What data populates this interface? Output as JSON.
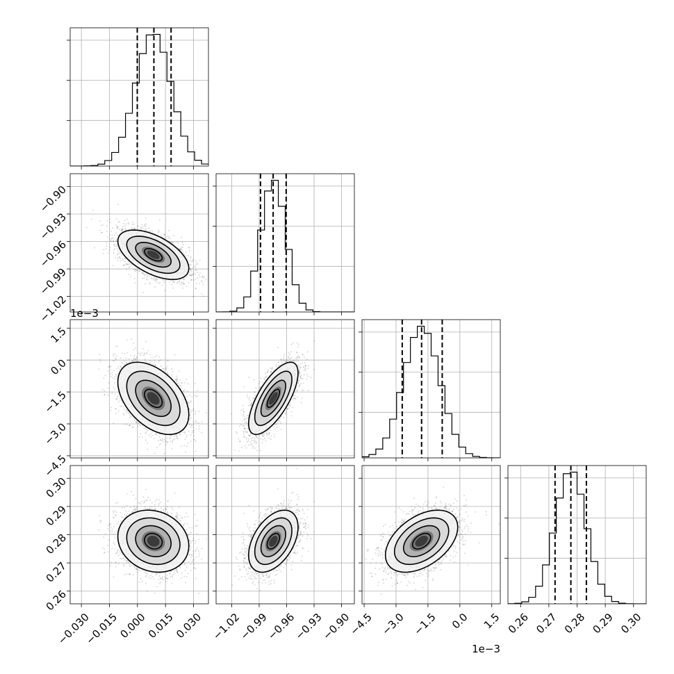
{
  "chart_data": {
    "type": "corner",
    "dims": [
      {
        "range": [
          -0.036,
          0.038
        ],
        "mean": 0.0085,
        "sd": 0.0095,
        "quantiles": [
          -0.0001,
          0.0088,
          0.018
        ],
        "ticks": [
          -0.03,
          -0.015,
          0.0,
          0.015,
          0.03
        ],
        "tick_labels": [
          "−0.030",
          "−0.015",
          "0.000",
          "0.015",
          "0.030"
        ],
        "offset": ""
      },
      {
        "range": [
          -1.037,
          -0.886
        ],
        "mean": -0.9745,
        "sd": 0.0135,
        "quantiles": [
          -0.9885,
          -0.9747,
          -0.9605
        ],
        "ticks": [
          -1.02,
          -0.99,
          -0.96,
          -0.93,
          -0.9
        ],
        "tick_labels": [
          "−1.02",
          "−0.99",
          "−0.96",
          "−0.93",
          "−0.90"
        ],
        "offset": ""
      },
      {
        "range": [
          -4.6,
          1.9
        ],
        "mean": -1.8,
        "sd": 0.85,
        "quantiles": [
          -2.71,
          -1.8,
          -0.83
        ],
        "ticks": [
          -4.5,
          -3.0,
          -1.5,
          0.0,
          1.5
        ],
        "tick_labels": [
          "−4.5",
          "−3.0",
          "−1.5",
          "0.0",
          "1.5"
        ],
        "offset": "1e−3"
      },
      {
        "range": [
          0.2555,
          0.3045
        ],
        "mean": 0.2777,
        "sd": 0.0055,
        "quantiles": [
          0.2722,
          0.2778,
          0.2833
        ],
        "ticks": [
          0.26,
          0.27,
          0.28,
          0.29,
          0.3
        ],
        "tick_labels": [
          "0.26",
          "0.27",
          "0.28",
          "0.29",
          "0.30"
        ],
        "offset": ""
      }
    ],
    "correlations": [
      [
        1.0,
        -0.55,
        -0.45,
        -0.15
      ],
      [
        -0.55,
        1.0,
        0.7,
        0.45
      ],
      [
        -0.45,
        0.7,
        1.0,
        0.45
      ],
      [
        -0.15,
        0.45,
        0.45,
        1.0
      ]
    ],
    "histogram_bins": 20,
    "contour_levels_sigma": [
      0.5,
      1.0,
      1.5,
      2.0
    ],
    "grid": true,
    "title": "",
    "xlabel": "",
    "ylabel": ""
  }
}
